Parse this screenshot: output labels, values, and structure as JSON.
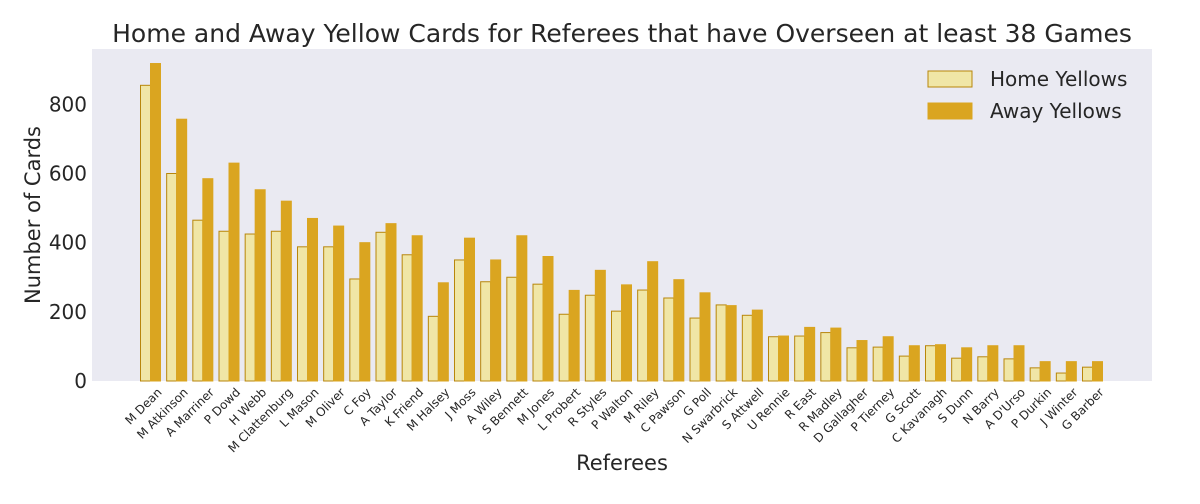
{
  "chart_data": {
    "type": "bar",
    "title": "Home and Away Yellow Cards for Referees that have Overseen at least 38 Games",
    "xlabel": "Referees",
    "ylabel": "Number of Cards",
    "ylim": [
      0,
      960
    ],
    "yticks": [
      0,
      200,
      400,
      600,
      800
    ],
    "grid": false,
    "legend_position": "top-right",
    "categories": [
      "M Dean",
      "M Atkinson",
      "A Marriner",
      "P Dowd",
      "H Webb",
      "M Clattenburg",
      "L Mason",
      "M Oliver",
      "C Foy",
      "A Taylor",
      "K Friend",
      "M Halsey",
      "J Moss",
      "A Wiley",
      "S Bennett",
      "M Jones",
      "L Probert",
      "R Styles",
      "P Walton",
      "M Riley",
      "C Pawson",
      "G Poll",
      "N Swarbrick",
      "S Attwell",
      "U Rennie",
      "R East",
      "R Madley",
      "D Gallagher",
      "P Tierney",
      "G Scott",
      "C Kavanagh",
      "S Dunn",
      "N Barry",
      "A D'Urso",
      "P Durkin",
      "J Winter",
      "G Barber"
    ],
    "series": [
      {
        "name": "Home Yellows",
        "color": "#f0e6a6",
        "edge_color": "#b8860b",
        "values": [
          855,
          600,
          465,
          433,
          425,
          433,
          388,
          388,
          295,
          430,
          365,
          187,
          350,
          287,
          300,
          280,
          193,
          248,
          202,
          263,
          240,
          182,
          220,
          190,
          128,
          130,
          140,
          96,
          98,
          72,
          102,
          66,
          70,
          64,
          38,
          23,
          40
        ]
      },
      {
        "name": "Away Yellows",
        "color": "#daa520",
        "edge_color": "#daa520",
        "values": [
          918,
          757,
          585,
          630,
          553,
          520,
          470,
          448,
          400,
          455,
          420,
          284,
          413,
          350,
          420,
          360,
          262,
          320,
          278,
          345,
          293,
          255,
          218,
          205,
          130,
          155,
          153,
          117,
          128,
          102,
          105,
          96,
          102,
          102,
          56,
          56,
          56
        ]
      }
    ]
  }
}
